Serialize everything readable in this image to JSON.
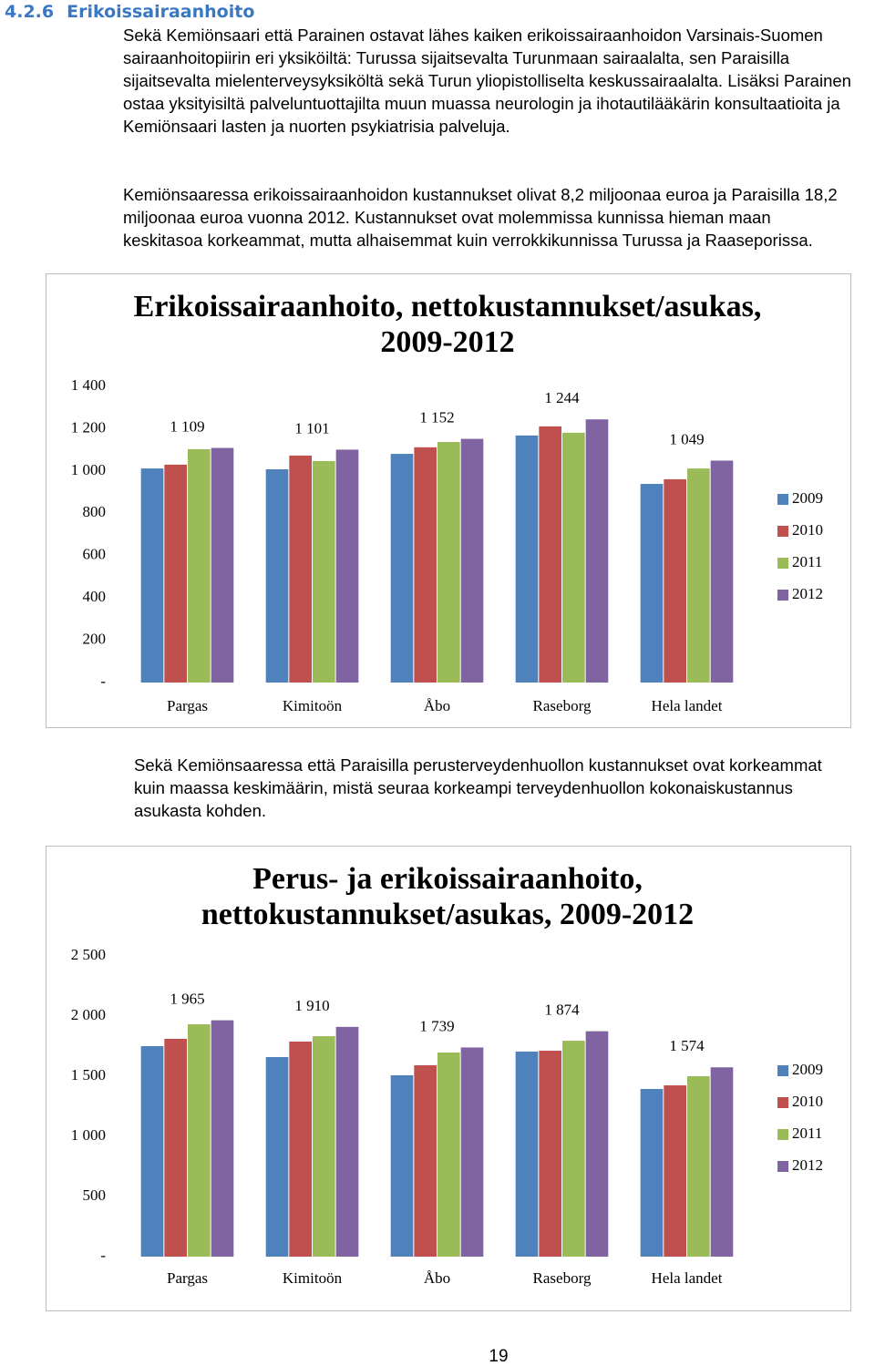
{
  "document": {
    "heading": {
      "number": "4.2.6",
      "title": "Erikoissairaanhoito"
    },
    "paragraphs": [
      "Sekä Kemiönsaari että Parainen ostavat lähes kaiken erikoissairaanhoidon Varsinais-Suomen sairaanhoitopiirin eri yksiköiltä: Turussa sijaitsevalta Turunmaan sairaalalta, sen Paraisilla sijaitsevalta mielenterveysyksiköltä sekä Turun yliopistolliselta keskussairaalalta. Lisäksi Parainen ostaa yksityisiltä palveluntuottajilta muun muassa neurologin ja ihotautilääkärin konsultaatioita ja Kemiönsaari lasten ja nuorten psykiatrisia palveluja.",
      "Kemiönsaaressa erikoissairaanhoidon kustannukset olivat 8,2 miljoonaa euroa ja Paraisilla 18,2 miljoonaa euroa vuonna 2012. Kustannukset ovat molemmissa kunnissa hieman maan keskitasoa korkeammat, mutta alhaisemmat kuin verrokkikunnissa Turussa ja Raaseporissa.",
      "Sekä Kemiönsaaressa että Paraisilla perusterveydenhuollon kustannukset ovat korkeammat kuin maassa keskimäärin, mistä seuraa korkeampi terveydenhuollon kokonaiskustannus asukasta kohden."
    ],
    "page_number": "19"
  },
  "chart_data": [
    {
      "type": "bar",
      "title": "Erikoissairaanhoito, nettokustannukset/asukas, 2009-2012",
      "categories": [
        "Pargas",
        "Kimitoön",
        "Åbo",
        "Raseborg",
        "Hela landet"
      ],
      "series": [
        {
          "name": "2009",
          "color": "#4f81bd",
          "values": [
            1012,
            1008,
            1081,
            1168,
            939
          ]
        },
        {
          "name": "2010",
          "color": "#c0504d",
          "values": [
            1030,
            1073,
            1112,
            1211,
            961
          ]
        },
        {
          "name": "2011",
          "color": "#9bbb59",
          "values": [
            1103,
            1047,
            1137,
            1181,
            1012
          ]
        },
        {
          "name": "2012",
          "color": "#8064a2",
          "values": [
            1109,
            1101,
            1152,
            1244,
            1049
          ],
          "value_labels": [
            "1 109",
            "1 101",
            "1 152",
            "1 244",
            "1 049"
          ]
        }
      ],
      "ylim": [
        0,
        1400
      ],
      "yticks": [
        {
          "value": 0,
          "label": "-"
        },
        200,
        400,
        600,
        800,
        {
          "value": 1000,
          "label": "1 000"
        },
        {
          "value": 1200,
          "label": "1 200"
        },
        {
          "value": 1400,
          "label": "1 400"
        }
      ],
      "grid": false,
      "legend": "right"
    },
    {
      "type": "bar",
      "title": "Perus- ja erikoissairaanhoito, nettokustannukset/asukas, 2009-2012",
      "categories": [
        "Pargas",
        "Kimitoön",
        "Åbo",
        "Raseborg",
        "Hela landet"
      ],
      "series": [
        {
          "name": "2009",
          "color": "#4f81bd",
          "values": [
            1750,
            1659,
            1508,
            1705,
            1394
          ]
        },
        {
          "name": "2010",
          "color": "#c0504d",
          "values": [
            1811,
            1788,
            1591,
            1712,
            1424
          ]
        },
        {
          "name": "2011",
          "color": "#9bbb59",
          "values": [
            1932,
            1833,
            1697,
            1795,
            1500
          ]
        },
        {
          "name": "2012",
          "color": "#8064a2",
          "values": [
            1965,
            1910,
            1739,
            1874,
            1574
          ],
          "value_labels": [
            "1 965",
            "1 910",
            "1 739",
            "1 874",
            "1 574"
          ]
        }
      ],
      "ylim": [
        0,
        2500
      ],
      "yticks": [
        {
          "value": 0,
          "label": "-"
        },
        500,
        {
          "value": 1000,
          "label": "1 000"
        },
        {
          "value": 1500,
          "label": "1 500"
        },
        {
          "value": 2000,
          "label": "2 000"
        },
        {
          "value": 2500,
          "label": "2 500"
        }
      ],
      "grid": false,
      "legend": "right"
    }
  ]
}
